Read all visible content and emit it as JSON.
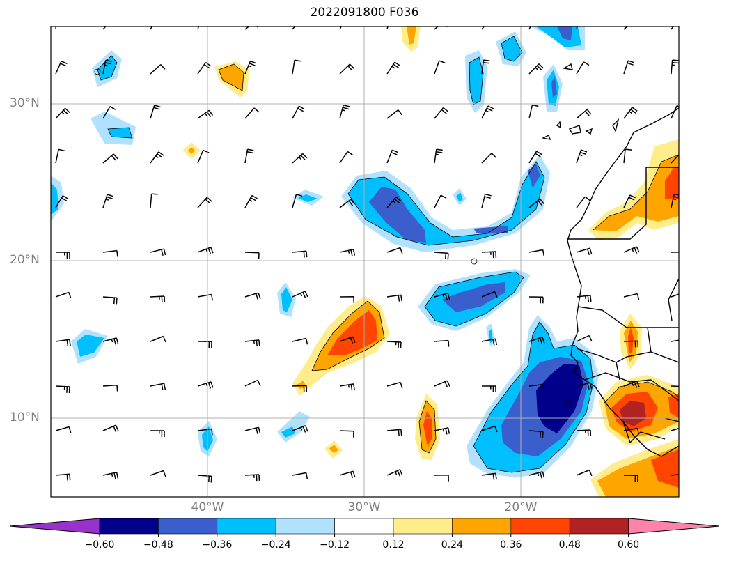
{
  "title": "2022091800 F036",
  "lat_labels": [
    "30°N",
    "20°N",
    "10°N"
  ],
  "lon_labels": [
    "40°W",
    "30°W",
    "20°W"
  ],
  "colorbar": {
    "colors": [
      "#9932cc",
      "#00008b",
      "#3a5fcd",
      "#00bfff",
      "#b0e2ff",
      "#ffffff",
      "#ffec8b",
      "#ffa500",
      "#ff4500",
      "#b22222",
      "#ff82ab"
    ],
    "ticks": [
      "−0.60",
      "−0.48",
      "−0.36",
      "−0.24",
      "−0.12",
      "0.12",
      "0.24",
      "0.36",
      "0.48",
      "0.60"
    ]
  },
  "map_extent": {
    "lon": [
      -50,
      -10
    ],
    "lat": [
      5,
      35
    ]
  }
}
